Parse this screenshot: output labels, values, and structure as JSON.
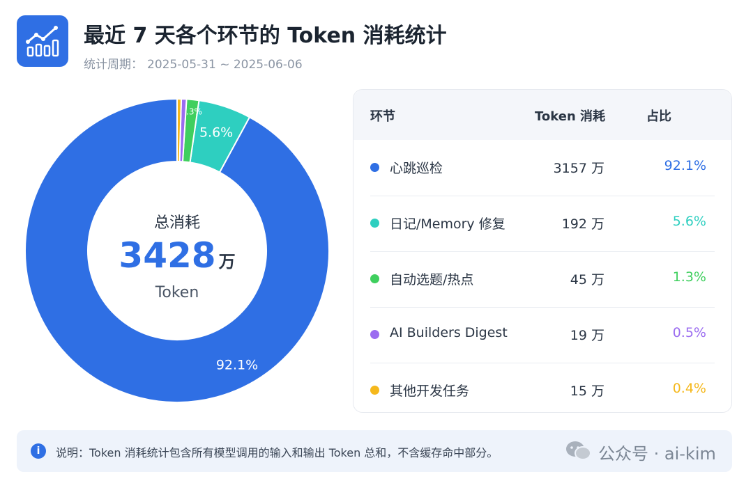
{
  "header": {
    "title": "最近 7 天各个环节的 Token 消耗统计",
    "period_label": "统计周期：",
    "period_value": "2025-05-31 ~ 2025-06-06"
  },
  "center": {
    "title": "总消耗",
    "value": "3428",
    "value_unit": "万",
    "unit": "Token"
  },
  "table": {
    "headers": {
      "name": "环节",
      "tokens": "Token 消耗",
      "share": "占比"
    }
  },
  "chart_data": {
    "type": "pie",
    "style": "donut",
    "title": "最近 7 天各个环节的 Token 消耗统计",
    "total": 3428,
    "unit": "万 Token",
    "series": [
      {
        "name": "心跳巡检",
        "value": 3157,
        "value_label": "3157 万",
        "percent": 92.1,
        "percent_label": "92.1%",
        "color": "#2f6fe4",
        "slice_label": "92.1%"
      },
      {
        "name": "日记/Memory 修复",
        "value": 192,
        "value_label": "192 万",
        "percent": 5.6,
        "percent_label": "5.6%",
        "color": "#2ecfc0",
        "slice_label": "5.6%"
      },
      {
        "name": "自动选题/热点",
        "value": 45,
        "value_label": "45 万",
        "percent": 1.3,
        "percent_label": "1.3%",
        "color": "#3fcf5e",
        "slice_label": "1.3%"
      },
      {
        "name": "AI Builders Digest",
        "value": 19,
        "value_label": "19 万",
        "percent": 0.5,
        "percent_label": "0.5%",
        "color": "#9b6cf0",
        "slice_label": ""
      },
      {
        "name": "其他开发任务",
        "value": 15,
        "value_label": "15 万",
        "percent": 0.4,
        "percent_label": "0.4%",
        "color": "#f5b81c",
        "slice_label": ""
      }
    ]
  },
  "note": {
    "text": "说明：Token 消耗统计包含所有模型调用的输入和输出 Token 总和，不含缓存命中部分。"
  },
  "watermark": {
    "text": "公众号 · ai-kim"
  },
  "icons": {
    "logo": "bar-chart-trend-icon",
    "info": "info-icon",
    "watermark": "wechat-icon"
  }
}
